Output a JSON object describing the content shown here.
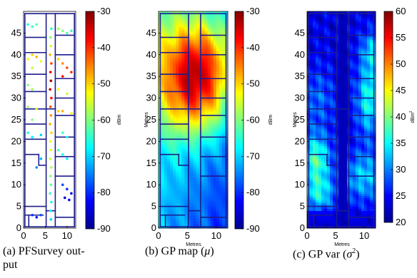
{
  "figure": {
    "panels": [
      {
        "id": "a",
        "caption_line1": "(a)  PFSurvey  out-",
        "caption_line2": "put",
        "xlabel": "",
        "ylabel": "",
        "colorbar_unit": "dBm",
        "colorbar_ticks": [
          "-30",
          "-40",
          "-50",
          "-60",
          "-70",
          "-80",
          "-90"
        ],
        "x_ticks": [
          "0",
          "5",
          "10"
        ],
        "y_ticks": [
          "0",
          "5",
          "10",
          "15",
          "20",
          "25",
          "30",
          "35",
          "40",
          "45"
        ]
      },
      {
        "id": "b",
        "caption_prefix": "(b)  GP map (",
        "caption_symbol": "μ",
        "caption_suffix": ")",
        "xlabel": "Metres",
        "ylabel": "Metres",
        "colorbar_unit": "dBm",
        "colorbar_ticks": [
          "-30",
          "-40",
          "-50",
          "-60",
          "-70",
          "-80",
          "-90"
        ],
        "x_ticks": [
          "0",
          "5",
          "10"
        ],
        "y_ticks": [
          "0",
          "5",
          "10",
          "15",
          "20",
          "25",
          "30",
          "35",
          "40",
          "45"
        ]
      },
      {
        "id": "c",
        "caption_prefix": "(c)  GP var (",
        "caption_symbol": "σ",
        "caption_sup": "2",
        "caption_suffix": ")",
        "xlabel": "Metres",
        "ylabel": "Metres",
        "colorbar_unit": "dBm",
        "colorbar_unit_sup": "2",
        "colorbar_ticks": [
          "60",
          "55",
          "50",
          "45",
          "40",
          "35",
          "30",
          "25",
          "20"
        ],
        "x_ticks": [
          "0",
          "5",
          "10"
        ],
        "y_ticks": [
          "0",
          "5",
          "10",
          "15",
          "20",
          "25",
          "30",
          "35",
          "40",
          "45"
        ]
      }
    ]
  },
  "chart_data": [
    {
      "type": "scatter",
      "title": "",
      "xlim": [
        0,
        12
      ],
      "ylim": [
        0,
        50
      ],
      "colormap": "jet",
      "color_range": [
        -90,
        -30
      ],
      "color_unit": "dBm",
      "points": [
        {
          "x": 6.3,
          "y": 2,
          "v": -70
        },
        {
          "x": 6.2,
          "y": 4,
          "v": -68
        },
        {
          "x": 6.4,
          "y": 6,
          "v": -66
        },
        {
          "x": 6.1,
          "y": 8,
          "v": -64
        },
        {
          "x": 6.3,
          "y": 10,
          "v": -62
        },
        {
          "x": 6.2,
          "y": 12,
          "v": -60
        },
        {
          "x": 6.4,
          "y": 14,
          "v": -58
        },
        {
          "x": 6.1,
          "y": 16,
          "v": -56
        },
        {
          "x": 6.3,
          "y": 18,
          "v": -54
        },
        {
          "x": 6.2,
          "y": 20,
          "v": -52
        },
        {
          "x": 6.4,
          "y": 22,
          "v": -50
        },
        {
          "x": 6.1,
          "y": 24,
          "v": -48
        },
        {
          "x": 6.3,
          "y": 26,
          "v": -46
        },
        {
          "x": 6.2,
          "y": 28,
          "v": -42
        },
        {
          "x": 6.4,
          "y": 30,
          "v": -38
        },
        {
          "x": 6.1,
          "y": 32,
          "v": -34
        },
        {
          "x": 6.3,
          "y": 34,
          "v": -32
        },
        {
          "x": 6.2,
          "y": 36,
          "v": -36
        },
        {
          "x": 6.4,
          "y": 38,
          "v": -42
        },
        {
          "x": 6.1,
          "y": 40,
          "v": -48
        },
        {
          "x": 6.3,
          "y": 42,
          "v": -55
        },
        {
          "x": 6.2,
          "y": 44,
          "v": -60
        },
        {
          "x": 6.4,
          "y": 46,
          "v": -65
        },
        {
          "x": 1,
          "y": 47,
          "v": -66
        },
        {
          "x": 2,
          "y": 46.5,
          "v": -64
        },
        {
          "x": 3,
          "y": 47,
          "v": -62
        },
        {
          "x": 8,
          "y": 46,
          "v": -58
        },
        {
          "x": 9,
          "y": 45.5,
          "v": -60
        },
        {
          "x": 10,
          "y": 45,
          "v": -62
        },
        {
          "x": 11,
          "y": 45.5,
          "v": -64
        },
        {
          "x": 1,
          "y": 39,
          "v": -52
        },
        {
          "x": 2,
          "y": 40,
          "v": -50
        },
        {
          "x": 3,
          "y": 39.5,
          "v": -48
        },
        {
          "x": 4,
          "y": 38.5,
          "v": -54
        },
        {
          "x": 2,
          "y": 37,
          "v": -56
        },
        {
          "x": 8,
          "y": 39,
          "v": -50
        },
        {
          "x": 9,
          "y": 38,
          "v": -46
        },
        {
          "x": 10,
          "y": 37,
          "v": -42
        },
        {
          "x": 11,
          "y": 36,
          "v": -40
        },
        {
          "x": 9,
          "y": 35,
          "v": -38
        },
        {
          "x": 1,
          "y": 33,
          "v": -60
        },
        {
          "x": 2,
          "y": 32,
          "v": -58
        },
        {
          "x": 8,
          "y": 32,
          "v": -52
        },
        {
          "x": 10,
          "y": 31,
          "v": -56
        },
        {
          "x": 1,
          "y": 28,
          "v": -58
        },
        {
          "x": 3,
          "y": 27.5,
          "v": -55
        },
        {
          "x": 2,
          "y": 25,
          "v": -60
        },
        {
          "x": 8,
          "y": 27,
          "v": -50
        },
        {
          "x": 9,
          "y": 27,
          "v": -48
        },
        {
          "x": 11,
          "y": 26.5,
          "v": -52
        },
        {
          "x": 1,
          "y": 22,
          "v": -66
        },
        {
          "x": 2,
          "y": 21,
          "v": -68
        },
        {
          "x": 4,
          "y": 21.5,
          "v": -70
        },
        {
          "x": 9,
          "y": 22,
          "v": -64
        },
        {
          "x": 10,
          "y": 21,
          "v": -66
        },
        {
          "x": 8,
          "y": 18,
          "v": -64
        },
        {
          "x": 9,
          "y": 17,
          "v": -66
        },
        {
          "x": 10,
          "y": 16,
          "v": -68
        },
        {
          "x": 4,
          "y": 16,
          "v": -72
        },
        {
          "x": 3,
          "y": 14,
          "v": -74
        },
        {
          "x": 9,
          "y": 10,
          "v": -78
        },
        {
          "x": 10,
          "y": 9,
          "v": -80
        },
        {
          "x": 11,
          "y": 8,
          "v": -84
        },
        {
          "x": 9.5,
          "y": 7,
          "v": -86
        },
        {
          "x": 10.5,
          "y": 6.5,
          "v": -82
        },
        {
          "x": 2,
          "y": 3,
          "v": -80
        },
        {
          "x": 3,
          "y": 2.5,
          "v": -82
        },
        {
          "x": 4,
          "y": 3,
          "v": -78
        }
      ]
    },
    {
      "type": "heatmap",
      "title": "",
      "xlabel": "Metres",
      "ylabel": "Metres",
      "xlim": [
        0,
        12
      ],
      "ylim": [
        0,
        50
      ],
      "colormap": "jet",
      "color_range": [
        -90,
        -30
      ],
      "color_unit": "dBm",
      "field": {
        "base": -72,
        "peaks": [
          {
            "x": 6.5,
            "y": 33,
            "amp": 34,
            "sx": 4.5,
            "sy": 8
          },
          {
            "x": 7.5,
            "y": 42,
            "amp": 10,
            "sx": 5,
            "sy": 6
          }
        ],
        "x_slope": -0.8,
        "y_slope": 0.15
      }
    },
    {
      "type": "heatmap",
      "title": "",
      "xlabel": "Metres",
      "ylabel": "Metres",
      "xlim": [
        0,
        12
      ],
      "ylim": [
        0,
        50
      ],
      "colormap": "jet",
      "color_range": [
        20,
        60
      ],
      "color_unit": "dBm²",
      "field": {
        "base": 24,
        "corridor_x": 6.2,
        "corridor_value": 22,
        "peaks": [
          {
            "x": 1.5,
            "y": 16,
            "amp": 14,
            "sx": 1.8,
            "sy": 4
          },
          {
            "x": 11,
            "y": 30,
            "amp": 12,
            "sx": 1.6,
            "sy": 6
          },
          {
            "x": 11.5,
            "y": 41,
            "amp": 8,
            "sx": 1.5,
            "sy": 3
          },
          {
            "x": 2,
            "y": 8,
            "amp": 10,
            "sx": 2,
            "sy": 3
          },
          {
            "x": 10,
            "y": 12,
            "amp": 9,
            "sx": 2.5,
            "sy": 4
          },
          {
            "x": 2,
            "y": 30,
            "amp": 5,
            "sx": 2,
            "sy": 5
          }
        ]
      }
    }
  ]
}
